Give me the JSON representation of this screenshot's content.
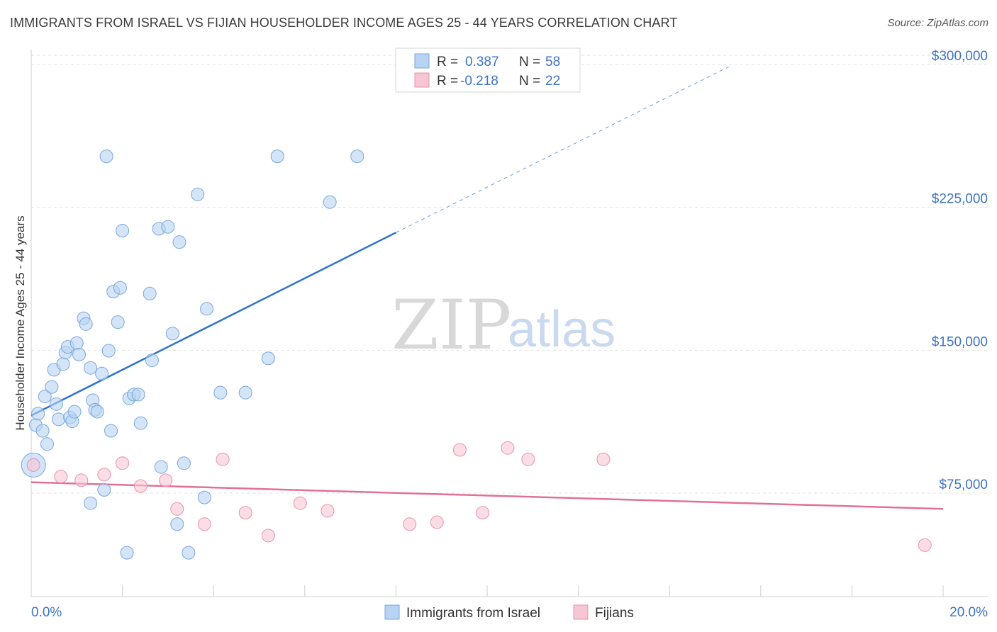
{
  "header": {
    "title": "IMMIGRANTS FROM ISRAEL VS FIJIAN HOUSEHOLDER INCOME AGES 25 - 44 YEARS CORRELATION CHART",
    "source": "Source: ZipAtlas.com"
  },
  "watermark": {
    "zip": "ZIP",
    "atlas": "atlas"
  },
  "colors": {
    "blue_fill": "#b8d3f3",
    "blue_stroke": "#7aa6dd",
    "blue_line": "#2f72d0",
    "pink_fill": "#f7c6d4",
    "pink_stroke": "#e893ad",
    "pink_line": "#e0709a",
    "grid": "#e3e3e3",
    "axis_text": "#3f73c4"
  },
  "legend": {
    "rows": [
      {
        "r_label": "R =",
        "r_value": "0.387",
        "n_label": "N =",
        "n_value": "58"
      },
      {
        "r_label": "R =",
        "r_value": "-0.218",
        "n_label": "N =",
        "n_value": "22"
      }
    ]
  },
  "chart_data": {
    "type": "scatter",
    "title": "IMMIGRANTS FROM ISRAEL VS FIJIAN HOUSEHOLDER INCOME AGES 25 - 44 YEARS CORRELATION CHART",
    "xlabel": "",
    "ylabel": "Householder Income Ages 25 - 44 years",
    "xlim": [
      0,
      20
    ],
    "ylim": [
      20000,
      307000
    ],
    "x_tick_labels": [
      "0.0%",
      "20.0%"
    ],
    "y_ticks": [
      75000,
      150000,
      225000,
      300000
    ],
    "y_tick_labels": [
      "$75,000",
      "$150,000",
      "$225,000",
      "$300,000"
    ],
    "legend_position": "top-center",
    "series": [
      {
        "name": "Immigrants from Israel",
        "r": 0.387,
        "n": 58,
        "trend": {
          "x0": 0.0,
          "y0": 115000,
          "x1": 8.0,
          "y1": 211000,
          "dashed_to_x": 15.3,
          "dashed_to_y": 298000
        },
        "points": [
          [
            0.05,
            89000,
            "large"
          ],
          [
            0.1,
            110000
          ],
          [
            0.15,
            116000
          ],
          [
            0.25,
            107000
          ],
          [
            0.3,
            125000
          ],
          [
            0.35,
            100000
          ],
          [
            0.45,
            130000
          ],
          [
            0.5,
            139000
          ],
          [
            0.55,
            121000
          ],
          [
            0.6,
            113000
          ],
          [
            0.7,
            142000
          ],
          [
            0.75,
            148000
          ],
          [
            0.8,
            151000
          ],
          [
            0.85,
            114000
          ],
          [
            0.9,
            112000
          ],
          [
            0.95,
            117000
          ],
          [
            1.0,
            153000
          ],
          [
            1.05,
            147000
          ],
          [
            1.15,
            166000
          ],
          [
            1.2,
            163000
          ],
          [
            1.3,
            140000
          ],
          [
            1.35,
            123000
          ],
          [
            1.4,
            118000
          ],
          [
            1.45,
            117000
          ],
          [
            1.55,
            137000
          ],
          [
            1.6,
            76000
          ],
          [
            1.65,
            251000
          ],
          [
            1.7,
            149000
          ],
          [
            1.75,
            107000
          ],
          [
            1.8,
            180000
          ],
          [
            1.9,
            164000
          ],
          [
            1.95,
            182000
          ],
          [
            2.0,
            212000
          ],
          [
            2.1,
            43000
          ],
          [
            2.15,
            124000
          ],
          [
            2.25,
            126000
          ],
          [
            2.35,
            126000
          ],
          [
            2.4,
            111000
          ],
          [
            2.6,
            179000
          ],
          [
            2.65,
            144000
          ],
          [
            2.8,
            213000
          ],
          [
            2.85,
            88000
          ],
          [
            3.0,
            214000
          ],
          [
            3.1,
            158000
          ],
          [
            3.2,
            58000
          ],
          [
            3.25,
            206000
          ],
          [
            3.35,
            90000
          ],
          [
            3.45,
            43000
          ],
          [
            1.3,
            69000
          ],
          [
            3.65,
            231000
          ],
          [
            3.8,
            72000
          ],
          [
            3.85,
            171000
          ],
          [
            4.15,
            127000
          ],
          [
            4.7,
            127000
          ],
          [
            5.2,
            145000
          ],
          [
            5.4,
            251000
          ],
          [
            6.55,
            227000
          ],
          [
            7.15,
            251000
          ]
        ]
      },
      {
        "name": "Fijians",
        "r": -0.218,
        "n": 22,
        "trend": {
          "x0": 0.0,
          "y0": 80000,
          "x1": 20.0,
          "y1": 66000
        },
        "points": [
          [
            0.05,
            89000
          ],
          [
            0.65,
            83000
          ],
          [
            1.1,
            81000
          ],
          [
            1.6,
            84000
          ],
          [
            2.0,
            90000
          ],
          [
            2.4,
            78000
          ],
          [
            2.95,
            81000
          ],
          [
            3.2,
            66000
          ],
          [
            3.8,
            58000
          ],
          [
            4.2,
            92000
          ],
          [
            4.7,
            64000
          ],
          [
            5.2,
            52000
          ],
          [
            5.9,
            69000
          ],
          [
            6.5,
            65000
          ],
          [
            8.3,
            58000
          ],
          [
            8.9,
            59000
          ],
          [
            9.4,
            97000
          ],
          [
            9.9,
            64000
          ],
          [
            10.45,
            98000
          ],
          [
            10.9,
            92000
          ],
          [
            12.55,
            92000
          ],
          [
            19.6,
            47000
          ]
        ]
      }
    ]
  }
}
